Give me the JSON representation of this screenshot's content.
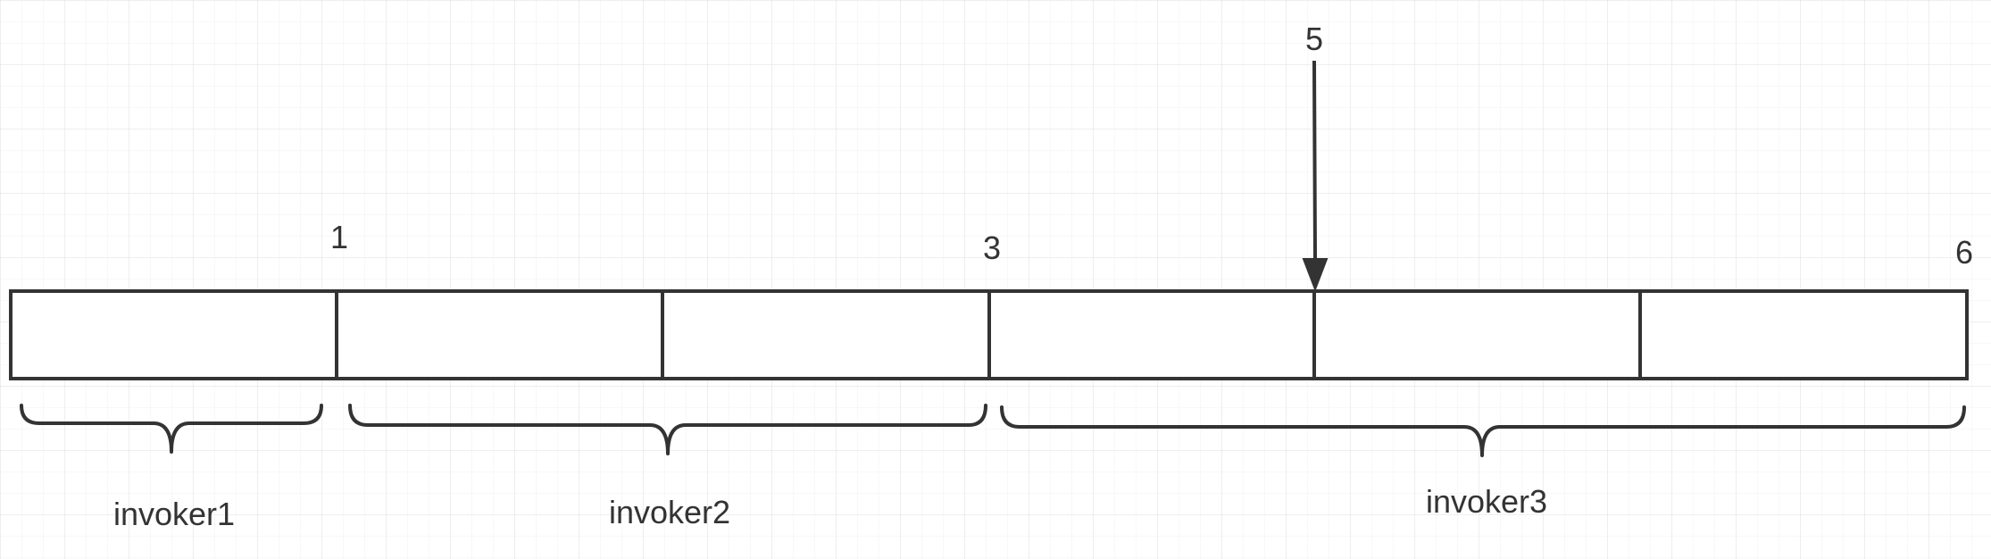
{
  "diagram": {
    "colors": {
      "background": "#ffffff",
      "grid_minor": "#f1f1f1",
      "grid_major": "#e3e3e3",
      "stroke": "#333333",
      "text": "#333333"
    },
    "grid": true,
    "cells": [
      {
        "id": "cell-1"
      },
      {
        "id": "cell-2"
      },
      {
        "id": "cell-3"
      },
      {
        "id": "cell-4"
      },
      {
        "id": "cell-5"
      },
      {
        "id": "cell-6"
      }
    ],
    "boundary_labels": [
      "1",
      "3",
      "6"
    ],
    "pointer": {
      "label": "5"
    },
    "groups": [
      {
        "label": "invoker1"
      },
      {
        "label": "invoker2"
      },
      {
        "label": "invoker3"
      }
    ]
  }
}
